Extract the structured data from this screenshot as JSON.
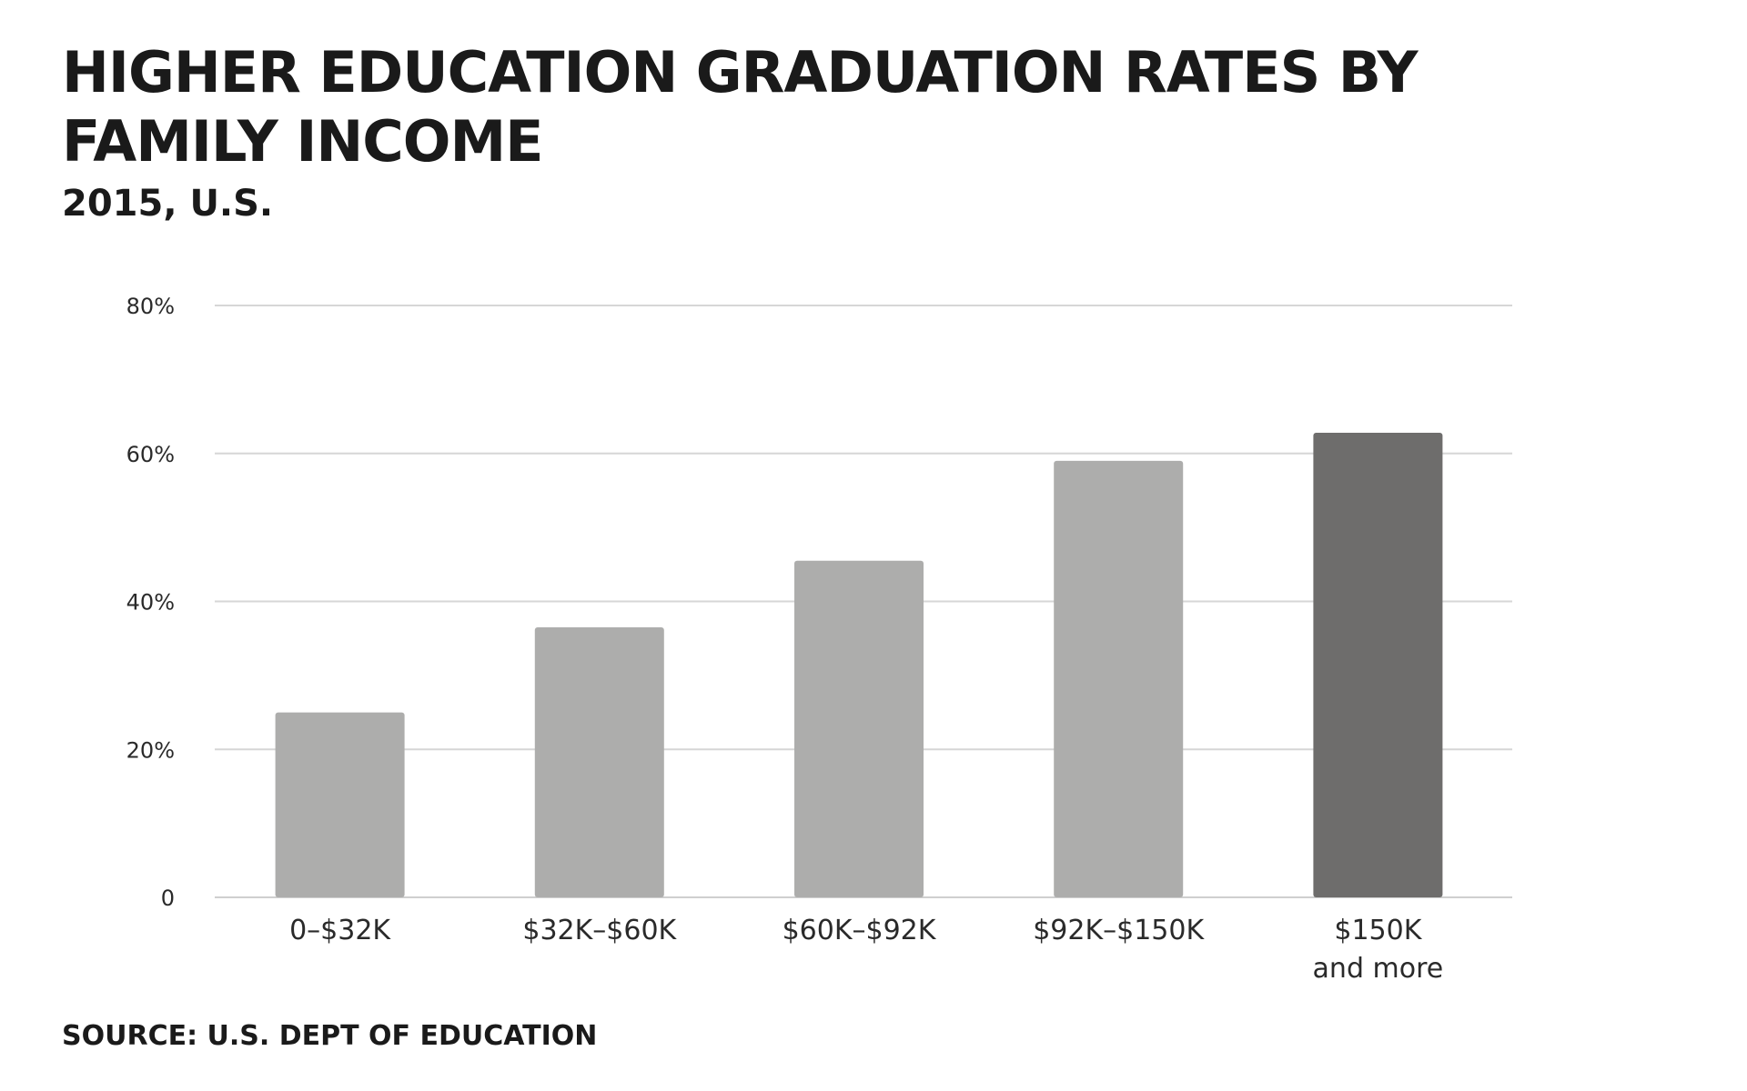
{
  "chart_data": {
    "type": "bar",
    "title": "HIGHER EDUCATION GRADUATION RATES BY FAMILY INCOME",
    "subtitle": "2015, U.S.",
    "source": "SOURCE: U.S. DEPT OF EDUCATION",
    "categories": [
      "0–$32K",
      "$32K–$60K",
      "$60K–$92K",
      "$92K–$150K",
      "$150K and more"
    ],
    "category_lines": [
      [
        "0–$32K"
      ],
      [
        "$32K–$60K"
      ],
      [
        "$60K–$92K"
      ],
      [
        "$92K–$150K"
      ],
      [
        "$150K",
        "and more"
      ]
    ],
    "values": [
      25,
      36.5,
      45.5,
      59,
      62.8
    ],
    "colors": [
      "#adadac",
      "#adadac",
      "#adadac",
      "#adadac",
      "#6e6d6c"
    ],
    "ylim": [
      0,
      80
    ],
    "yticks": [
      0,
      20,
      40,
      60,
      80
    ],
    "ytick_labels": [
      "0",
      "20%",
      "40%",
      "60%",
      "80%"
    ],
    "grid": true,
    "xlabel": "",
    "ylabel": ""
  }
}
